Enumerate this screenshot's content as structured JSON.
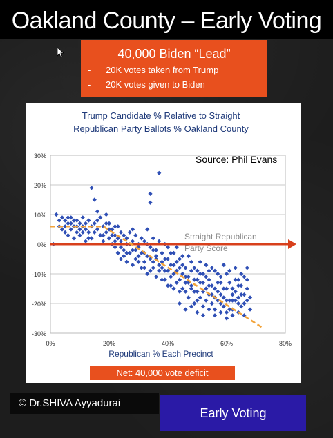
{
  "page": {
    "title": "Oakland County – Early Voting",
    "lead": {
      "title": "40,000  Biden “Lead”",
      "items": [
        {
          "dash": "-",
          "text": "20K votes taken from Trump"
        },
        {
          "dash": "-",
          "text": "20K votes given to Biden"
        }
      ]
    },
    "net": "Net:  40,000 vote deficit",
    "copyright": "© Dr.SHIVA Ayyadurai",
    "early_voting": "Early Voting",
    "colors": {
      "orange": "#e8501e",
      "blue_box": "#2a1aa6",
      "points": "#2f4fb5",
      "trend": "#f2a33a",
      "baseline": "#d8401c"
    }
  },
  "chart_data": {
    "type": "scatter",
    "title": "Trump Candidate % Relative to Straight Republican Party Ballots % Oakland County",
    "title_lines": [
      "Trump Candidate % Relative to Straight",
      "Republican Party Ballots % Oakland County"
    ],
    "source": "Source: Phil Evans",
    "xlabel": "Republican % Each Precinct",
    "ylabel": "",
    "xlim": [
      0,
      80
    ],
    "ylim": [
      -30,
      30
    ],
    "x_ticks": [
      "0%",
      "20%",
      "40%",
      "60%",
      "80%"
    ],
    "y_ticks": [
      "30%",
      "20%",
      "10%",
      "0%",
      "-10%",
      "-20%",
      "-30%"
    ],
    "grid": true,
    "annotation": {
      "text": [
        "Straight Republican",
        "Party Score"
      ],
      "y": 0
    },
    "trend": [
      {
        "x": 0,
        "y": 6
      },
      {
        "x": 18,
        "y": 6
      },
      {
        "x": 45,
        "y": -11
      },
      {
        "x": 72,
        "y": -28
      }
    ],
    "series": [
      {
        "points": [
          [
            1,
            0
          ],
          [
            2,
            10
          ],
          [
            3,
            6
          ],
          [
            4,
            9
          ],
          [
            4,
            5
          ],
          [
            5,
            4
          ],
          [
            5,
            8
          ],
          [
            6,
            7
          ],
          [
            6,
            3
          ],
          [
            7,
            9
          ],
          [
            7,
            5
          ],
          [
            8,
            6
          ],
          [
            8,
            2
          ],
          [
            9,
            8
          ],
          [
            9,
            4
          ],
          [
            10,
            7
          ],
          [
            10,
            3
          ],
          [
            11,
            6
          ],
          [
            11,
            9
          ],
          [
            12,
            5
          ],
          [
            12,
            1
          ],
          [
            13,
            8
          ],
          [
            13,
            4
          ],
          [
            14,
            6
          ],
          [
            14,
            19
          ],
          [
            14,
            2
          ],
          [
            15,
            7
          ],
          [
            15,
            15
          ],
          [
            16,
            5
          ],
          [
            16,
            11
          ],
          [
            17,
            3
          ],
          [
            17,
            9
          ],
          [
            18,
            6
          ],
          [
            18,
            1
          ],
          [
            19,
            4
          ],
          [
            19,
            10
          ],
          [
            20,
            2
          ],
          [
            20,
            7
          ],
          [
            21,
            0
          ],
          [
            21,
            5
          ],
          [
            22,
            -1
          ],
          [
            22,
            3
          ],
          [
            23,
            6
          ],
          [
            23,
            -3
          ],
          [
            24,
            1
          ],
          [
            24,
            -5
          ],
          [
            25,
            3
          ],
          [
            25,
            -2
          ],
          [
            26,
            0
          ],
          [
            26,
            -6
          ],
          [
            27,
            4
          ],
          [
            27,
            -3
          ],
          [
            28,
            1
          ],
          [
            28,
            -7
          ],
          [
            29,
            -2
          ],
          [
            29,
            3
          ],
          [
            30,
            -4
          ],
          [
            30,
            0
          ],
          [
            31,
            -8
          ],
          [
            31,
            2
          ],
          [
            32,
            -3
          ],
          [
            32,
            -6
          ],
          [
            33,
            -10
          ],
          [
            33,
            0
          ],
          [
            34,
            -5
          ],
          [
            34,
            17
          ],
          [
            34,
            14
          ],
          [
            35,
            -2
          ],
          [
            35,
            -8
          ],
          [
            36,
            -11
          ],
          [
            36,
            -4
          ],
          [
            37,
            24
          ],
          [
            37,
            1
          ],
          [
            37,
            -7
          ],
          [
            38,
            -12
          ],
          [
            38,
            -3
          ],
          [
            39,
            -9
          ],
          [
            39,
            -5
          ],
          [
            40,
            -14
          ],
          [
            40,
            -1
          ],
          [
            41,
            -7
          ],
          [
            41,
            -11
          ],
          [
            42,
            -3
          ],
          [
            42,
            -15
          ],
          [
            43,
            -9
          ],
          [
            43,
            -6
          ],
          [
            44,
            -12
          ],
          [
            44,
            -16
          ],
          [
            45,
            -4
          ],
          [
            45,
            -10
          ],
          [
            46,
            -13
          ],
          [
            46,
            -8
          ],
          [
            47,
            -18
          ],
          [
            47,
            -11
          ],
          [
            48,
            -6
          ],
          [
            48,
            -15
          ],
          [
            49,
            -12
          ],
          [
            49,
            -20
          ],
          [
            50,
            -9
          ],
          [
            50,
            -16
          ],
          [
            51,
            -13
          ],
          [
            51,
            -18
          ],
          [
            52,
            -10
          ],
          [
            52,
            -21
          ],
          [
            53,
            -15
          ],
          [
            53,
            -7
          ],
          [
            54,
            -17
          ],
          [
            54,
            -12
          ],
          [
            55,
            -20
          ],
          [
            55,
            -14
          ],
          [
            56,
            -9
          ],
          [
            56,
            -22
          ],
          [
            57,
            -16
          ],
          [
            57,
            -19
          ],
          [
            58,
            -13
          ],
          [
            58,
            -11
          ],
          [
            59,
            -18
          ],
          [
            59,
            -21
          ],
          [
            60,
            -15
          ],
          [
            60,
            -10
          ],
          [
            61,
            -19
          ],
          [
            61,
            -13
          ],
          [
            62,
            -17
          ],
          [
            62,
            -22
          ],
          [
            63,
            -12
          ],
          [
            63,
            -16
          ],
          [
            64,
            -20
          ],
          [
            64,
            -18
          ],
          [
            65,
            -14
          ],
          [
            65,
            -21
          ],
          [
            66,
            -17
          ],
          [
            66,
            -11
          ],
          [
            67,
            -19
          ],
          [
            67,
            -15
          ],
          [
            68,
            -22
          ],
          [
            68,
            -18
          ],
          [
            5,
            6
          ],
          [
            6,
            9
          ],
          [
            8,
            8
          ],
          [
            10,
            5
          ],
          [
            12,
            7
          ],
          [
            13,
            2
          ],
          [
            15,
            4
          ],
          [
            16,
            8
          ],
          [
            18,
            3
          ],
          [
            20,
            5
          ],
          [
            22,
            1
          ],
          [
            24,
            -1
          ],
          [
            26,
            2
          ],
          [
            28,
            -2
          ],
          [
            30,
            -6
          ],
          [
            32,
            1
          ],
          [
            34,
            -9
          ],
          [
            36,
            -2
          ],
          [
            38,
            -6
          ],
          [
            40,
            -9
          ],
          [
            42,
            -10
          ],
          [
            44,
            -8
          ],
          [
            46,
            -11
          ],
          [
            48,
            -14
          ],
          [
            50,
            -12
          ],
          [
            52,
            -16
          ],
          [
            54,
            -14
          ],
          [
            56,
            -18
          ],
          [
            58,
            -17
          ],
          [
            60,
            -19
          ],
          [
            62,
            -15
          ],
          [
            64,
            -14
          ],
          [
            66,
            -20
          ],
          [
            3,
            8
          ],
          [
            7,
            7
          ],
          [
            9,
            6
          ],
          [
            11,
            4
          ],
          [
            19,
            7
          ],
          [
            21,
            3
          ],
          [
            23,
            2
          ],
          [
            25,
            -4
          ],
          [
            27,
            0
          ],
          [
            29,
            -5
          ],
          [
            31,
            -3
          ],
          [
            33,
            -4
          ],
          [
            35,
            -6
          ],
          [
            37,
            -9
          ],
          [
            39,
            -12
          ],
          [
            41,
            -14
          ],
          [
            43,
            -13
          ],
          [
            45,
            -15
          ],
          [
            47,
            -13
          ],
          [
            49,
            -16
          ],
          [
            51,
            -10
          ],
          [
            53,
            -19
          ],
          [
            55,
            -17
          ],
          [
            57,
            -13
          ],
          [
            59,
            -15
          ],
          [
            61,
            -22
          ],
          [
            63,
            -19
          ],
          [
            65,
            -17
          ],
          [
            67,
            -12
          ],
          [
            22,
            6
          ],
          [
            24,
            4
          ],
          [
            26,
            -3
          ],
          [
            28,
            5
          ],
          [
            30,
            -1
          ],
          [
            32,
            -8
          ],
          [
            34,
            -1
          ],
          [
            36,
            -5
          ],
          [
            38,
            -8
          ],
          [
            40,
            -5
          ],
          [
            42,
            -7
          ],
          [
            44,
            -5
          ],
          [
            46,
            -16
          ],
          [
            48,
            -9
          ],
          [
            50,
            -19
          ],
          [
            52,
            -13
          ],
          [
            54,
            -9
          ],
          [
            56,
            -15
          ],
          [
            58,
            -20
          ],
          [
            60,
            -23
          ],
          [
            62,
            -19
          ],
          [
            64,
            -12
          ],
          [
            33,
            5
          ],
          [
            35,
            2
          ],
          [
            39,
            0
          ],
          [
            41,
            -3
          ],
          [
            43,
            -1
          ],
          [
            45,
            -7
          ],
          [
            47,
            -4
          ],
          [
            49,
            -8
          ],
          [
            51,
            -6
          ],
          [
            53,
            -11
          ],
          [
            55,
            -8
          ],
          [
            57,
            -10
          ],
          [
            59,
            -7
          ],
          [
            61,
            -9
          ],
          [
            63,
            -8
          ],
          [
            65,
            -10
          ],
          [
            67,
            -8
          ],
          [
            44,
            -20
          ],
          [
            46,
            -22
          ],
          [
            48,
            -21
          ],
          [
            50,
            -23
          ],
          [
            52,
            -24
          ],
          [
            54,
            -22
          ],
          [
            56,
            -24
          ],
          [
            58,
            -23
          ],
          [
            60,
            -25
          ],
          [
            62,
            -24
          ],
          [
            64,
            -23
          ],
          [
            66,
            -24
          ]
        ]
      }
    ]
  }
}
